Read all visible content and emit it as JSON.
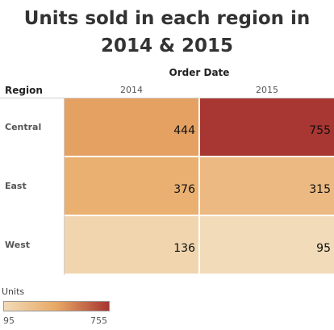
{
  "chart_data": {
    "type": "heatmap",
    "title": "Units sold in each region in 2014 & 2015",
    "column_header": "Order Date",
    "row_header": "Region",
    "columns": [
      "2014",
      "2015"
    ],
    "rows": [
      "Central",
      "East",
      "West"
    ],
    "values": [
      [
        444,
        755
      ],
      [
        376,
        315
      ],
      [
        136,
        95
      ]
    ],
    "legend": {
      "title": "Units",
      "min": 95,
      "max": 755,
      "min_label": "95",
      "max_label": "755",
      "colors": [
        "#f1dbb8",
        "#e8a865",
        "#a83632"
      ]
    }
  }
}
